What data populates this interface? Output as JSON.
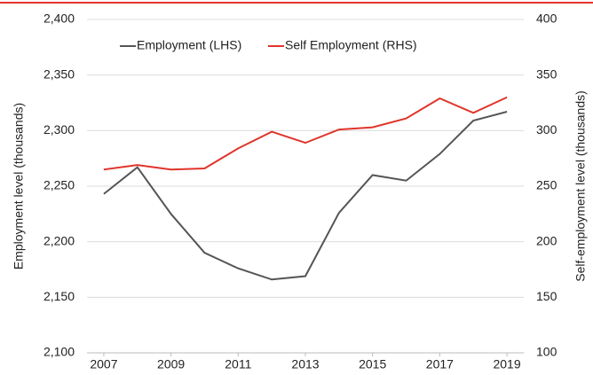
{
  "chart_data": {
    "type": "line",
    "x": [
      2007,
      2008,
      2009,
      2010,
      2011,
      2012,
      2013,
      2014,
      2015,
      2016,
      2017,
      2018,
      2019
    ],
    "xlim": [
      2006.5,
      2019.5
    ],
    "xticks": [
      2007,
      2009,
      2011,
      2013,
      2015,
      2017,
      2019
    ],
    "ylabel": "Employment level (thousands)",
    "y2label": "Self-employment level (thousands)",
    "ylim": [
      2100,
      2400
    ],
    "yticks": [
      {
        "value": 2100,
        "label": "2,100"
      },
      {
        "value": 2150,
        "label": "2,150"
      },
      {
        "value": 2200,
        "label": "2,200"
      },
      {
        "value": 2250,
        "label": "2,250"
      },
      {
        "value": 2300,
        "label": "2,300"
      },
      {
        "value": 2350,
        "label": "2,350"
      },
      {
        "value": 2400,
        "label": "2,400"
      }
    ],
    "y2lim": [
      100,
      400
    ],
    "y2ticks": [
      100,
      150,
      200,
      250,
      300,
      350,
      400
    ],
    "legend": "top",
    "series": [
      {
        "name": "Employment (LHS)",
        "color": "#555555",
        "values": [
          2243,
          2267,
          2225,
          2190,
          2176,
          2166,
          2169,
          2226,
          2260,
          2255,
          2279,
          2309,
          2317
        ]
      },
      {
        "name": "Self Employment (RHS)",
        "color": "#e0352b",
        "axis": "y2",
        "values": [
          265,
          269,
          265,
          266,
          284,
          299,
          289,
          301,
          303,
          311,
          329,
          316,
          330
        ]
      }
    ]
  }
}
